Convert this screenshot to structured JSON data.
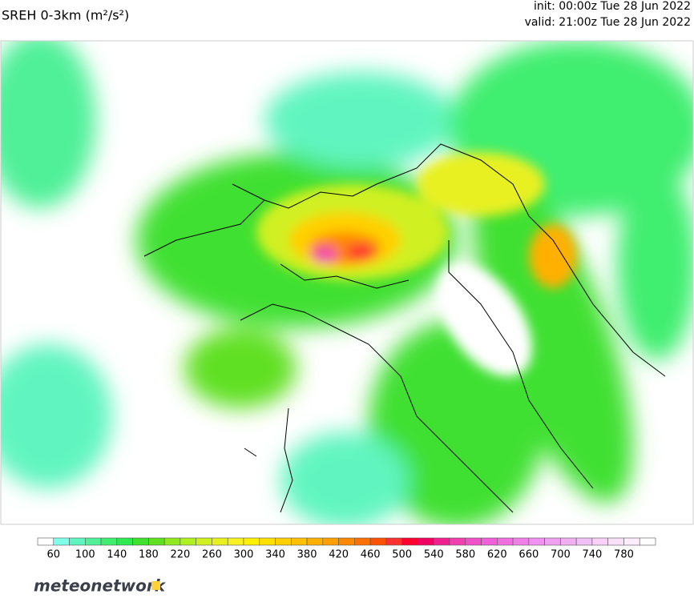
{
  "header": {
    "title": "SREH 0-3km (m²/s²)",
    "init": "init: 00:00z Tue 28 Jun 2022",
    "valid": "valid: 21:00z Tue 28 Jun 2022"
  },
  "colorbar": {
    "bounds": [
      40,
      60,
      80,
      100,
      120,
      140,
      160,
      180,
      200,
      220,
      240,
      260,
      280,
      300,
      320,
      340,
      360,
      380,
      400,
      420,
      440,
      460,
      480,
      500,
      520,
      540,
      560,
      580,
      600,
      620,
      640,
      660,
      680,
      700,
      720,
      740,
      760,
      780,
      800,
      820
    ],
    "colors": [
      "#ffffff",
      "#80ffe8",
      "#60f5c0",
      "#50f098",
      "#40ee70",
      "#30e850",
      "#40e030",
      "#60e020",
      "#90e820",
      "#b0f020",
      "#d0f020",
      "#e8f020",
      "#f8f020",
      "#fff000",
      "#ffe000",
      "#ffd000",
      "#ffc000",
      "#ffb000",
      "#ffa000",
      "#ff8800",
      "#ff7000",
      "#ff5000",
      "#ff3030",
      "#ff0030",
      "#f00060",
      "#f02090",
      "#f040b0",
      "#f050c8",
      "#f060d8",
      "#f070e0",
      "#f080e8",
      "#f090f0",
      "#f0a0f0",
      "#f0b0f0",
      "#f0c0f4",
      "#f8d0f8",
      "#f8e0f8",
      "#fcecfc",
      "#ffffff"
    ],
    "ticks": [
      60,
      100,
      140,
      180,
      220,
      260,
      300,
      340,
      380,
      420,
      460,
      500,
      540,
      580,
      620,
      660,
      700,
      740,
      780
    ]
  },
  "logo": {
    "text": "meteonetwork"
  }
}
